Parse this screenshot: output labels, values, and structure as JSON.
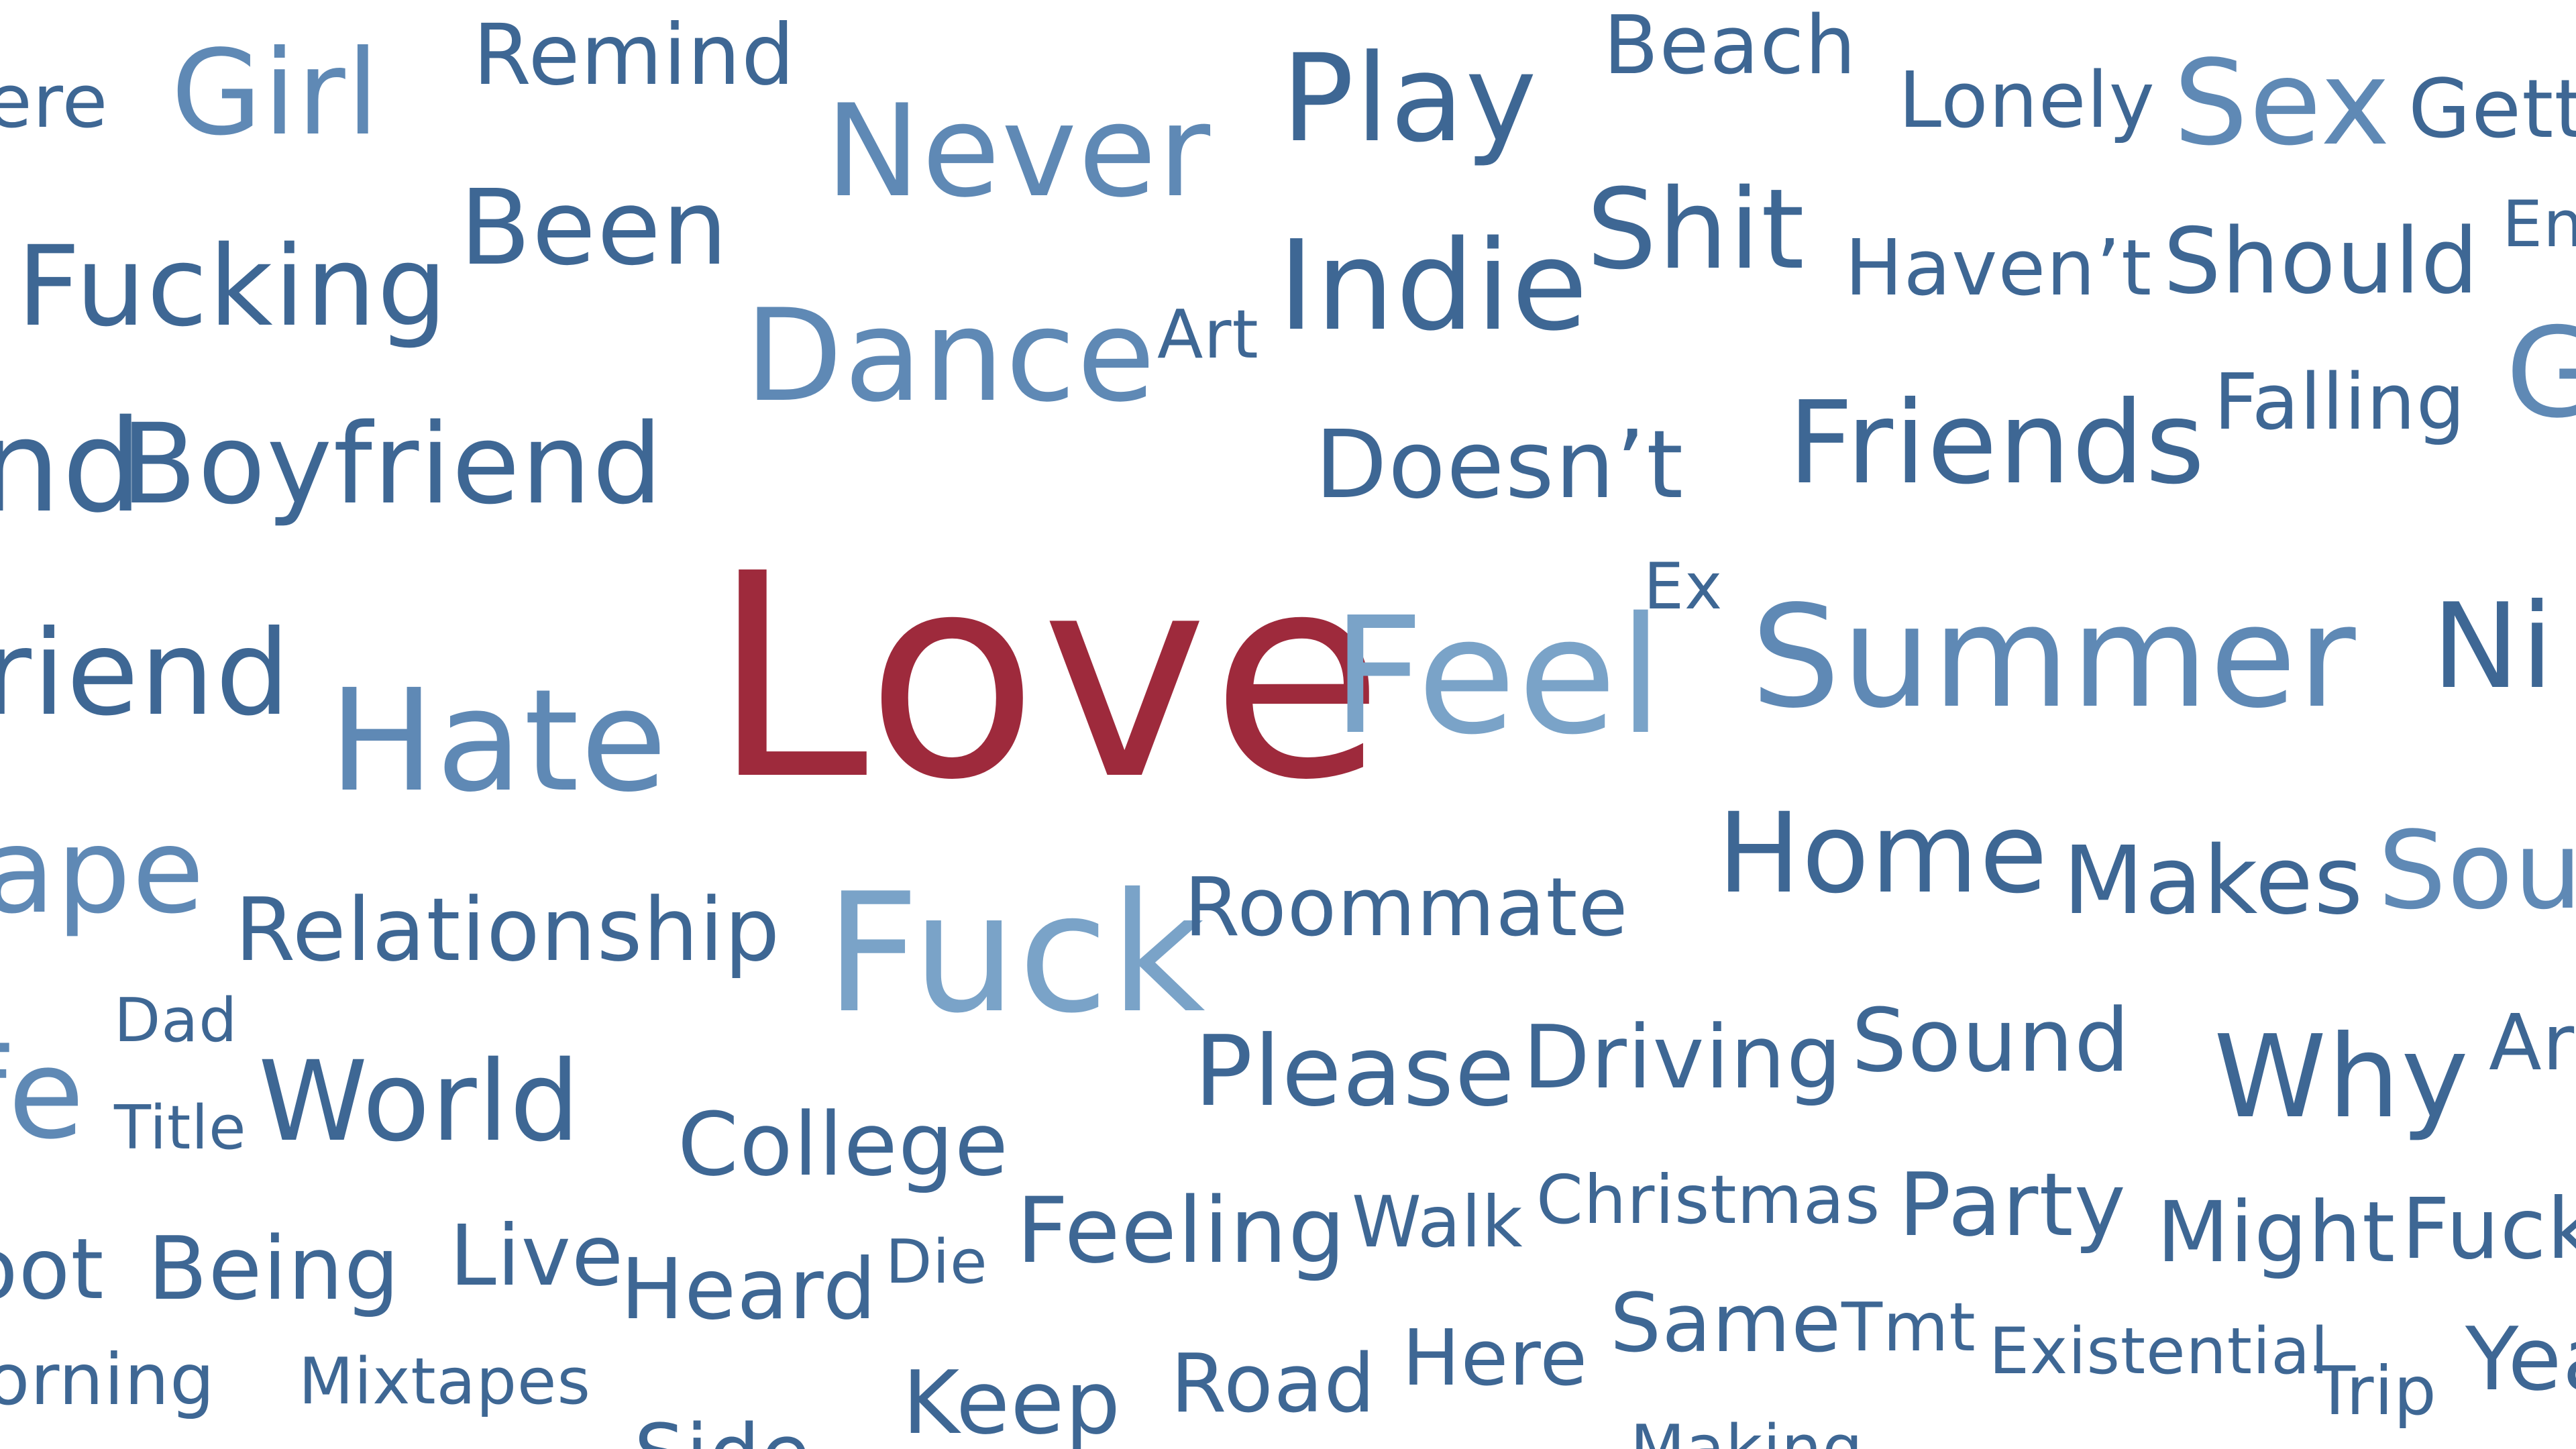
{
  "chart_data": {
    "type": "wordcloud",
    "colors": {
      "highlight": "#9e2a3c",
      "dark": "#3e6794",
      "medium": "#5f89b5",
      "light": "#7aa3c8"
    },
    "words": [
      {
        "text": "Love",
        "shade": "highlight"
      },
      {
        "text": "Feel",
        "shade": "light"
      },
      {
        "text": "Summer",
        "shade": "medium"
      },
      {
        "text": "Fuck",
        "shade": "light"
      },
      {
        "text": "Never",
        "shade": "medium"
      },
      {
        "text": "Dance",
        "shade": "medium"
      },
      {
        "text": "Hate",
        "shade": "medium"
      },
      {
        "text": "Girl",
        "shade": "medium"
      },
      {
        "text": "Sex",
        "shade": "medium"
      },
      {
        "text": "Play",
        "shade": "dark"
      },
      {
        "text": "Indie",
        "shade": "dark"
      },
      {
        "text": "Shit",
        "shade": "dark"
      },
      {
        "text": "Home",
        "shade": "dark"
      },
      {
        "text": "Friends",
        "shade": "dark"
      },
      {
        "text": "Boyfriend",
        "shade": "dark"
      },
      {
        "text": "Fucking",
        "shade": "dark"
      },
      {
        "text": "Been",
        "shade": "dark"
      },
      {
        "text": "World",
        "shade": "dark"
      },
      {
        "text": "Why",
        "shade": "dark"
      },
      {
        "text": "Doesn’t",
        "shade": "dark"
      },
      {
        "text": "Should",
        "shade": "dark"
      },
      {
        "text": "Relationship",
        "shade": "dark"
      },
      {
        "text": "Roommate",
        "shade": "dark"
      },
      {
        "text": "Makes",
        "shade": "dark"
      },
      {
        "text": "Please",
        "shade": "dark"
      },
      {
        "text": "Driving",
        "shade": "dark"
      },
      {
        "text": "Sound",
        "shade": "dark"
      },
      {
        "text": "College",
        "shade": "dark"
      },
      {
        "text": "Feeling",
        "shade": "dark"
      },
      {
        "text": "Party",
        "shade": "dark"
      },
      {
        "text": "Might",
        "shade": "dark"
      },
      {
        "text": "Being",
        "shade": "dark"
      },
      {
        "text": "Live",
        "shade": "dark"
      },
      {
        "text": "Heard",
        "shade": "dark"
      },
      {
        "text": "Keep",
        "shade": "dark"
      },
      {
        "text": "Road",
        "shade": "dark"
      },
      {
        "text": "Here",
        "shade": "dark"
      },
      {
        "text": "Same",
        "shade": "dark"
      },
      {
        "text": "Remind",
        "shade": "dark"
      },
      {
        "text": "Beach",
        "shade": "dark"
      },
      {
        "text": "Lonely",
        "shade": "dark"
      },
      {
        "text": "Haven’t",
        "shade": "dark"
      },
      {
        "text": "Falling",
        "shade": "dark"
      },
      {
        "text": "Art",
        "shade": "dark"
      },
      {
        "text": "Ex",
        "shade": "dark"
      },
      {
        "text": "Dad",
        "shade": "dark"
      },
      {
        "text": "Title",
        "shade": "dark"
      },
      {
        "text": "Die",
        "shade": "dark"
      },
      {
        "text": "Walk",
        "shade": "dark"
      },
      {
        "text": "Christmas",
        "shade": "dark"
      },
      {
        "text": "Tmt",
        "shade": "dark"
      },
      {
        "text": "Existential",
        "shade": "dark"
      },
      {
        "text": "Trip",
        "shade": "dark"
      },
      {
        "text": "Mixtapes",
        "shade": "dark"
      },
      {
        "text": "Side",
        "shade": "dark"
      },
      {
        "text": "Making",
        "shade": "dark"
      },
      {
        "text": "ere",
        "shade": "dark"
      },
      {
        "text": "Gett",
        "shade": "dark"
      },
      {
        "text": "En",
        "shade": "dark"
      },
      {
        "text": "G",
        "shade": "medium"
      },
      {
        "text": "nd",
        "shade": "dark"
      },
      {
        "text": "riend",
        "shade": "dark"
      },
      {
        "text": "Ni",
        "shade": "dark"
      },
      {
        "text": "ape",
        "shade": "medium"
      },
      {
        "text": "Sou",
        "shade": "medium"
      },
      {
        "text": "fe",
        "shade": "medium"
      },
      {
        "text": "Ar",
        "shade": "dark"
      },
      {
        "text": "Fuck",
        "shade": "dark"
      },
      {
        "text": "oot",
        "shade": "dark"
      },
      {
        "text": "orning",
        "shade": "dark"
      },
      {
        "text": "Yea",
        "shade": "dark"
      }
    ]
  }
}
